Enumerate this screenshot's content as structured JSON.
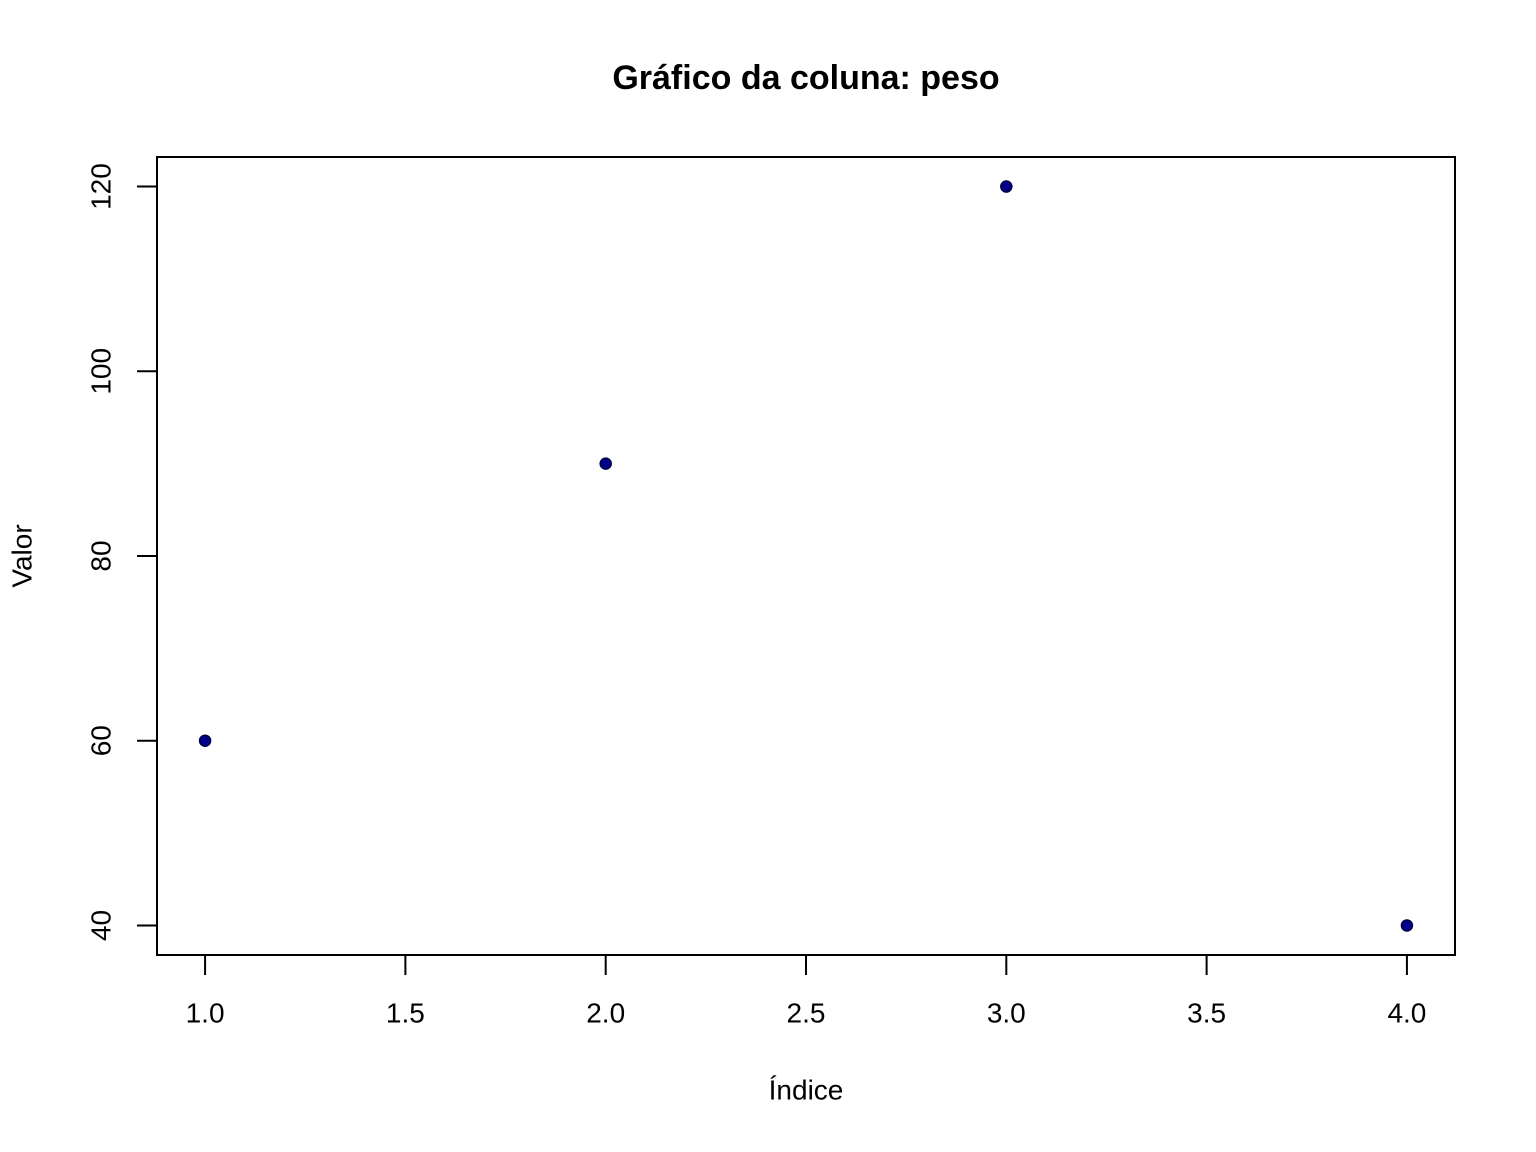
{
  "chart_data": {
    "type": "scatter",
    "title": "Gráfico da coluna: peso",
    "x_label": "Índice",
    "y_label": "Valor",
    "x": [
      1,
      2,
      3,
      4
    ],
    "values": [
      60,
      90,
      120,
      40
    ],
    "color": "#00008b",
    "xlim": [
      0.88,
      4.12
    ],
    "xticks": [
      {
        "value": 1,
        "label": "1.0"
      },
      1.5,
      {
        "value": 2,
        "label": "2.0"
      },
      2.5,
      {
        "value": 3,
        "label": "3.0"
      },
      3.5,
      {
        "value": 4,
        "label": "4.0"
      }
    ],
    "ylim": [
      36.8,
      123.2
    ],
    "yticks": [
      40,
      60,
      80,
      100,
      120
    ],
    "grid": false
  }
}
